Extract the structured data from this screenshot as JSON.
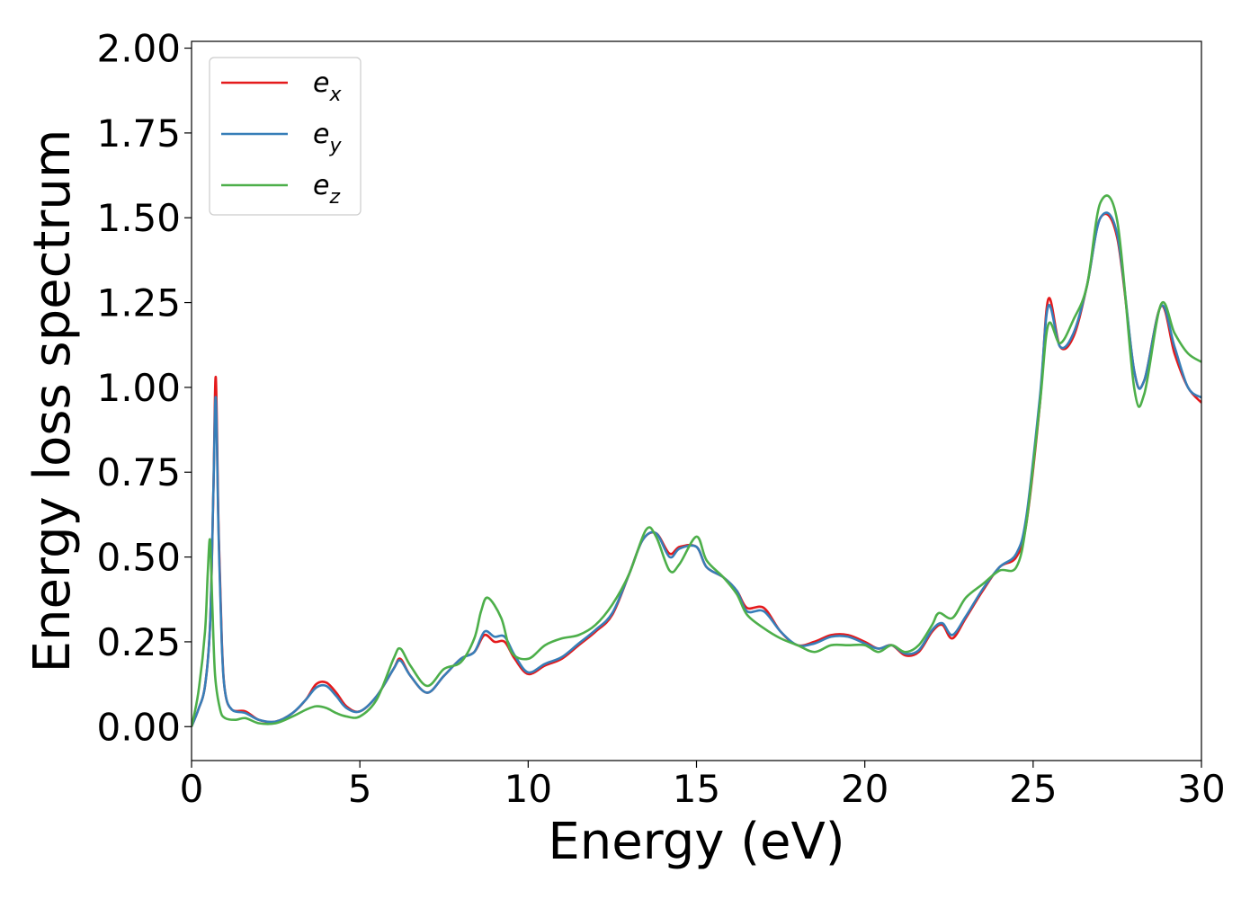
{
  "chart_data": {
    "type": "line",
    "xlabel": "Energy (eV)",
    "ylabel": "Energy loss spectrum",
    "xlim": [
      0,
      30
    ],
    "ylim": [
      -0.1,
      2.02
    ],
    "xticks": [
      0,
      5,
      10,
      15,
      20,
      25,
      30
    ],
    "xtick_labels": [
      "0",
      "5",
      "10",
      "15",
      "20",
      "25",
      "30"
    ],
    "yticks": [
      0,
      0.25,
      0.5,
      0.75,
      1.0,
      1.25,
      1.5,
      1.75,
      2.0
    ],
    "ytick_labels": [
      "0.00",
      "0.25",
      "0.50",
      "0.75",
      "1.00",
      "1.25",
      "1.50",
      "1.75",
      "2.00"
    ],
    "grid": false,
    "legend_position": "top-left",
    "series": [
      {
        "name": "e_x",
        "label_base": "e",
        "label_sub": "x",
        "color": "#e41a1c",
        "points": [
          [
            0,
            0
          ],
          [
            0.2,
            0.05
          ],
          [
            0.4,
            0.12
          ],
          [
            0.55,
            0.3
          ],
          [
            0.65,
            0.7
          ],
          [
            0.72,
            1.03
          ],
          [
            0.8,
            0.6
          ],
          [
            0.9,
            0.25
          ],
          [
            1.0,
            0.1
          ],
          [
            1.2,
            0.05
          ],
          [
            1.6,
            0.045
          ],
          [
            2.0,
            0.02
          ],
          [
            2.5,
            0.015
          ],
          [
            3.0,
            0.04
          ],
          [
            3.4,
            0.08
          ],
          [
            3.7,
            0.125
          ],
          [
            4.0,
            0.13
          ],
          [
            4.3,
            0.1
          ],
          [
            4.6,
            0.06
          ],
          [
            5.0,
            0.045
          ],
          [
            5.5,
            0.09
          ],
          [
            6.0,
            0.17
          ],
          [
            6.2,
            0.2
          ],
          [
            6.5,
            0.15
          ],
          [
            7.0,
            0.1
          ],
          [
            7.5,
            0.15
          ],
          [
            8.0,
            0.2
          ],
          [
            8.4,
            0.22
          ],
          [
            8.7,
            0.27
          ],
          [
            9.0,
            0.25
          ],
          [
            9.3,
            0.25
          ],
          [
            9.6,
            0.2
          ],
          [
            10.0,
            0.155
          ],
          [
            10.5,
            0.18
          ],
          [
            11.0,
            0.2
          ],
          [
            11.5,
            0.24
          ],
          [
            12.0,
            0.28
          ],
          [
            12.5,
            0.33
          ],
          [
            13.0,
            0.45
          ],
          [
            13.4,
            0.55
          ],
          [
            13.8,
            0.57
          ],
          [
            14.2,
            0.51
          ],
          [
            14.5,
            0.53
          ],
          [
            15.0,
            0.53
          ],
          [
            15.3,
            0.47
          ],
          [
            15.8,
            0.44
          ],
          [
            16.2,
            0.4
          ],
          [
            16.5,
            0.35
          ],
          [
            17.0,
            0.35
          ],
          [
            17.5,
            0.28
          ],
          [
            18.0,
            0.24
          ],
          [
            18.5,
            0.25
          ],
          [
            19.0,
            0.27
          ],
          [
            19.5,
            0.27
          ],
          [
            20.0,
            0.25
          ],
          [
            20.4,
            0.23
          ],
          [
            20.8,
            0.24
          ],
          [
            21.2,
            0.21
          ],
          [
            21.6,
            0.22
          ],
          [
            22.0,
            0.28
          ],
          [
            22.3,
            0.3
          ],
          [
            22.6,
            0.26
          ],
          [
            23.0,
            0.32
          ],
          [
            23.5,
            0.4
          ],
          [
            24.0,
            0.47
          ],
          [
            24.5,
            0.5
          ],
          [
            24.8,
            0.6
          ],
          [
            25.2,
            0.95
          ],
          [
            25.45,
            1.26
          ],
          [
            25.8,
            1.12
          ],
          [
            26.2,
            1.15
          ],
          [
            26.6,
            1.3
          ],
          [
            27.0,
            1.5
          ],
          [
            27.5,
            1.44
          ],
          [
            28.0,
            1.05
          ],
          [
            28.3,
            1.02
          ],
          [
            28.8,
            1.24
          ],
          [
            29.2,
            1.1
          ],
          [
            29.6,
            1.0
          ],
          [
            30.0,
            0.955
          ]
        ]
      },
      {
        "name": "e_y",
        "label_base": "e",
        "label_sub": "y",
        "color": "#377eb8",
        "points": [
          [
            0,
            0
          ],
          [
            0.2,
            0.05
          ],
          [
            0.4,
            0.12
          ],
          [
            0.55,
            0.3
          ],
          [
            0.65,
            0.7
          ],
          [
            0.72,
            0.97
          ],
          [
            0.8,
            0.58
          ],
          [
            0.9,
            0.24
          ],
          [
            1.0,
            0.1
          ],
          [
            1.2,
            0.05
          ],
          [
            1.6,
            0.04
          ],
          [
            2.0,
            0.02
          ],
          [
            2.5,
            0.015
          ],
          [
            3.0,
            0.04
          ],
          [
            3.4,
            0.08
          ],
          [
            3.7,
            0.115
          ],
          [
            4.0,
            0.12
          ],
          [
            4.3,
            0.09
          ],
          [
            4.6,
            0.055
          ],
          [
            5.0,
            0.045
          ],
          [
            5.5,
            0.09
          ],
          [
            6.0,
            0.17
          ],
          [
            6.2,
            0.195
          ],
          [
            6.5,
            0.15
          ],
          [
            7.0,
            0.1
          ],
          [
            7.5,
            0.15
          ],
          [
            8.0,
            0.2
          ],
          [
            8.4,
            0.22
          ],
          [
            8.7,
            0.28
          ],
          [
            9.0,
            0.265
          ],
          [
            9.3,
            0.265
          ],
          [
            9.6,
            0.21
          ],
          [
            10.0,
            0.16
          ],
          [
            10.5,
            0.185
          ],
          [
            11.0,
            0.205
          ],
          [
            11.5,
            0.245
          ],
          [
            12.0,
            0.285
          ],
          [
            12.5,
            0.335
          ],
          [
            13.0,
            0.45
          ],
          [
            13.4,
            0.55
          ],
          [
            13.8,
            0.57
          ],
          [
            14.2,
            0.5
          ],
          [
            14.5,
            0.525
          ],
          [
            15.0,
            0.53
          ],
          [
            15.3,
            0.47
          ],
          [
            15.8,
            0.44
          ],
          [
            16.2,
            0.4
          ],
          [
            16.5,
            0.34
          ],
          [
            17.0,
            0.34
          ],
          [
            17.5,
            0.28
          ],
          [
            18.0,
            0.24
          ],
          [
            18.5,
            0.245
          ],
          [
            19.0,
            0.265
          ],
          [
            19.5,
            0.265
          ],
          [
            20.0,
            0.245
          ],
          [
            20.4,
            0.23
          ],
          [
            20.8,
            0.24
          ],
          [
            21.2,
            0.215
          ],
          [
            21.6,
            0.225
          ],
          [
            22.0,
            0.285
          ],
          [
            22.3,
            0.305
          ],
          [
            22.6,
            0.27
          ],
          [
            23.0,
            0.325
          ],
          [
            23.5,
            0.405
          ],
          [
            24.0,
            0.47
          ],
          [
            24.5,
            0.51
          ],
          [
            24.8,
            0.62
          ],
          [
            25.2,
            0.97
          ],
          [
            25.45,
            1.24
          ],
          [
            25.8,
            1.12
          ],
          [
            26.2,
            1.16
          ],
          [
            26.6,
            1.3
          ],
          [
            27.0,
            1.5
          ],
          [
            27.5,
            1.45
          ],
          [
            28.0,
            1.05
          ],
          [
            28.3,
            1.02
          ],
          [
            28.8,
            1.24
          ],
          [
            29.2,
            1.12
          ],
          [
            29.6,
            1.0
          ],
          [
            30.0,
            0.97
          ]
        ]
      },
      {
        "name": "e_z",
        "label_base": "e",
        "label_sub": "z",
        "color": "#4daf4a",
        "points": [
          [
            0,
            0
          ],
          [
            0.2,
            0.1
          ],
          [
            0.4,
            0.28
          ],
          [
            0.48,
            0.45
          ],
          [
            0.55,
            0.55
          ],
          [
            0.62,
            0.35
          ],
          [
            0.7,
            0.15
          ],
          [
            0.85,
            0.05
          ],
          [
            1.0,
            0.025
          ],
          [
            1.3,
            0.02
          ],
          [
            1.6,
            0.025
          ],
          [
            2.0,
            0.01
          ],
          [
            2.5,
            0.01
          ],
          [
            3.0,
            0.03
          ],
          [
            3.4,
            0.05
          ],
          [
            3.7,
            0.06
          ],
          [
            4.0,
            0.055
          ],
          [
            4.3,
            0.04
          ],
          [
            4.6,
            0.03
          ],
          [
            5.0,
            0.03
          ],
          [
            5.5,
            0.08
          ],
          [
            6.0,
            0.2
          ],
          [
            6.2,
            0.23
          ],
          [
            6.5,
            0.18
          ],
          [
            7.0,
            0.12
          ],
          [
            7.5,
            0.17
          ],
          [
            8.0,
            0.19
          ],
          [
            8.4,
            0.26
          ],
          [
            8.6,
            0.34
          ],
          [
            8.8,
            0.38
          ],
          [
            9.2,
            0.32
          ],
          [
            9.5,
            0.22
          ],
          [
            10.0,
            0.2
          ],
          [
            10.5,
            0.24
          ],
          [
            11.0,
            0.26
          ],
          [
            11.5,
            0.27
          ],
          [
            12.0,
            0.3
          ],
          [
            12.5,
            0.36
          ],
          [
            13.0,
            0.45
          ],
          [
            13.5,
            0.58
          ],
          [
            13.8,
            0.56
          ],
          [
            14.2,
            0.46
          ],
          [
            14.5,
            0.48
          ],
          [
            15.0,
            0.56
          ],
          [
            15.3,
            0.49
          ],
          [
            15.8,
            0.44
          ],
          [
            16.2,
            0.39
          ],
          [
            16.5,
            0.33
          ],
          [
            17.0,
            0.29
          ],
          [
            17.5,
            0.26
          ],
          [
            18.0,
            0.24
          ],
          [
            18.5,
            0.22
          ],
          [
            19.0,
            0.24
          ],
          [
            19.5,
            0.24
          ],
          [
            20.0,
            0.24
          ],
          [
            20.4,
            0.22
          ],
          [
            20.8,
            0.24
          ],
          [
            21.2,
            0.22
          ],
          [
            21.6,
            0.24
          ],
          [
            22.0,
            0.3
          ],
          [
            22.2,
            0.335
          ],
          [
            22.6,
            0.32
          ],
          [
            23.0,
            0.38
          ],
          [
            23.5,
            0.42
          ],
          [
            24.0,
            0.46
          ],
          [
            24.5,
            0.47
          ],
          [
            24.8,
            0.6
          ],
          [
            25.2,
            0.95
          ],
          [
            25.45,
            1.185
          ],
          [
            25.8,
            1.13
          ],
          [
            26.2,
            1.2
          ],
          [
            26.6,
            1.3
          ],
          [
            27.0,
            1.545
          ],
          [
            27.5,
            1.49
          ],
          [
            28.0,
            1.0
          ],
          [
            28.3,
            0.98
          ],
          [
            28.8,
            1.245
          ],
          [
            29.2,
            1.16
          ],
          [
            29.6,
            1.1
          ],
          [
            30.0,
            1.075
          ]
        ]
      }
    ]
  }
}
